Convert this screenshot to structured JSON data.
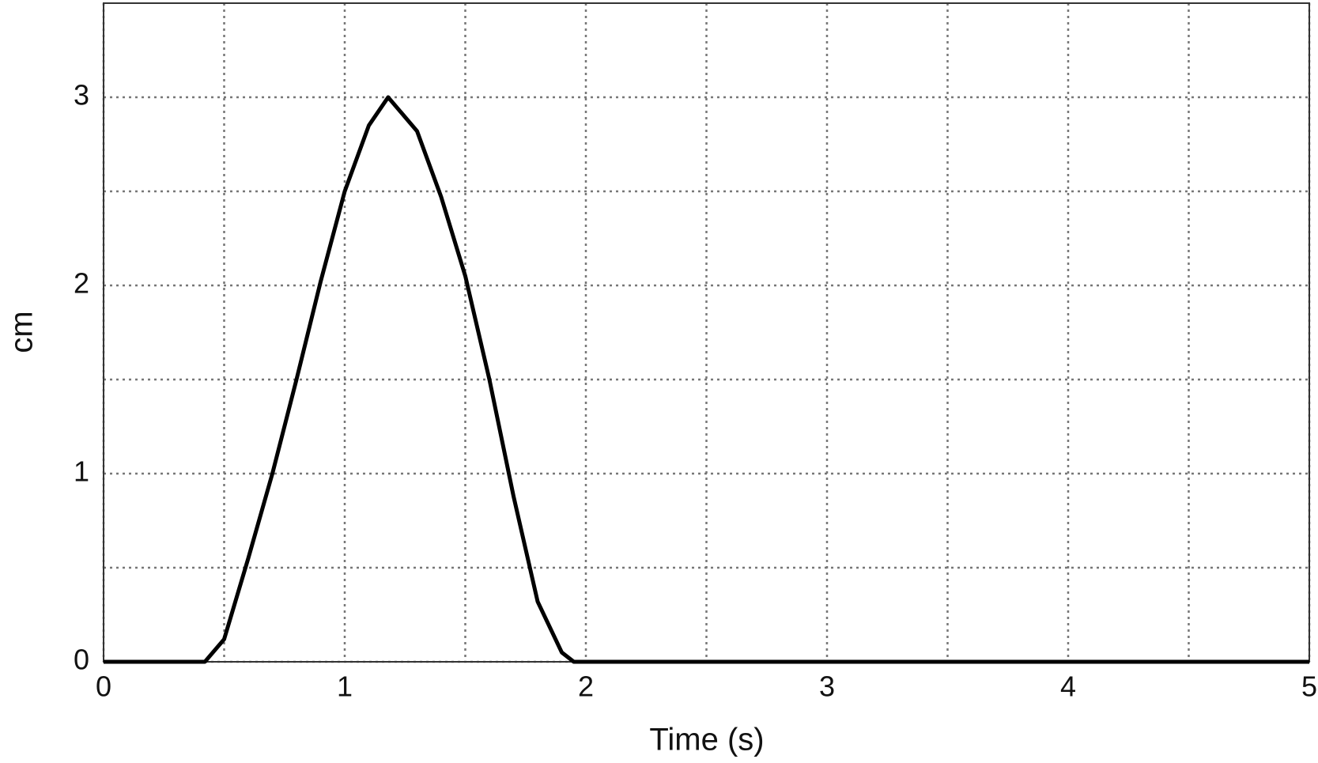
{
  "chart_data": {
    "type": "line",
    "xlabel": "Time (s)",
    "ylabel": "cm",
    "x": [
      0,
      0.42,
      0.5,
      0.6,
      0.7,
      0.8,
      0.9,
      1.0,
      1.1,
      1.18,
      1.3,
      1.4,
      1.5,
      1.6,
      1.7,
      1.8,
      1.9,
      1.95,
      2,
      5
    ],
    "series": [
      {
        "color": "#000000",
        "values": [
          0,
          0,
          0.12,
          0.55,
          1.0,
          1.5,
          2.02,
          2.5,
          2.85,
          3.0,
          2.82,
          2.47,
          2.05,
          1.5,
          0.88,
          0.32,
          0.05,
          0,
          0,
          0
        ]
      }
    ],
    "xlim": [
      0,
      5
    ],
    "ylim": [
      0,
      3.5
    ],
    "xticks": [
      0,
      1,
      2,
      3,
      4,
      5
    ],
    "yticks": [
      0,
      1,
      2,
      3
    ],
    "minor_xticks": [
      0.5,
      1.5,
      2.5,
      3.5,
      4.5
    ],
    "minor_yticks": [
      0.5,
      1.5,
      2.5
    ],
    "grid": true
  }
}
